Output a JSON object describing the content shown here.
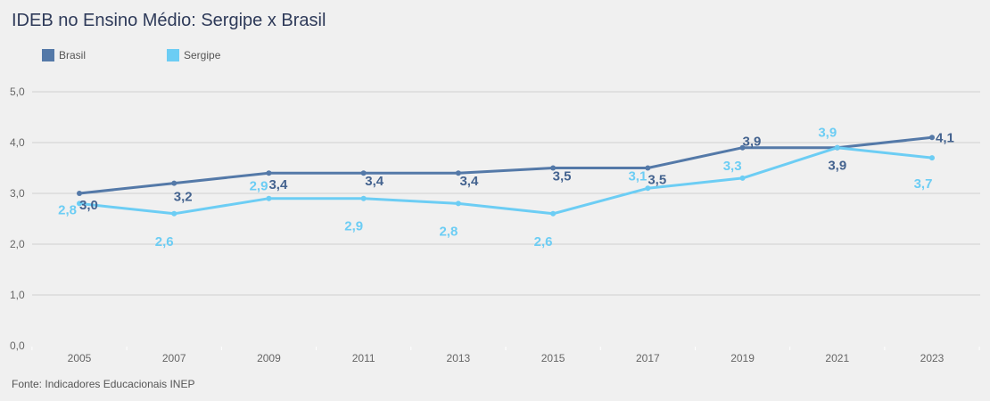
{
  "title": "IDEB no Ensino Médio: Sergipe x Brasil",
  "source": "Fonte: Indicadores Educacionais INEP",
  "legend": [
    {
      "label": "Brasil",
      "color": "#5479a8"
    },
    {
      "label": "Sergipe",
      "color": "#6ccdf4"
    }
  ],
  "chart_data": {
    "type": "line",
    "title": "IDEB no Ensino Médio: Sergipe x Brasil",
    "xlabel": "",
    "ylabel": "",
    "x": [
      "2005",
      "2007",
      "2009",
      "2011",
      "2013",
      "2015",
      "2017",
      "2019",
      "2021",
      "2023"
    ],
    "ylim": [
      0,
      5
    ],
    "yticks": [
      "0,0",
      "1,0",
      "2,0",
      "3,0",
      "4,0",
      "5,0"
    ],
    "ytick_values": [
      0,
      1,
      2,
      3,
      4,
      5
    ],
    "grid": true,
    "legend_position": "top-left",
    "series": [
      {
        "name": "Brasil",
        "color": "#5479a8",
        "values": [
          3.0,
          3.2,
          3.4,
          3.4,
          3.4,
          3.5,
          3.5,
          3.9,
          3.9,
          4.1
        ],
        "labels": [
          "3,0",
          "3,2",
          "3,4",
          "3,4",
          "3,4",
          "3,5",
          "3,5",
          "3,9",
          "3,9",
          "4,1"
        ]
      },
      {
        "name": "Sergipe",
        "color": "#6ccdf4",
        "values": [
          2.8,
          2.6,
          2.9,
          2.9,
          2.8,
          2.6,
          3.1,
          3.3,
          3.9,
          3.7
        ],
        "labels": [
          "2,8",
          "2,6",
          "2,9",
          "2,9",
          "2,8",
          "2,6",
          "3,1",
          "3,3",
          "3,9",
          "3,7"
        ]
      }
    ]
  }
}
